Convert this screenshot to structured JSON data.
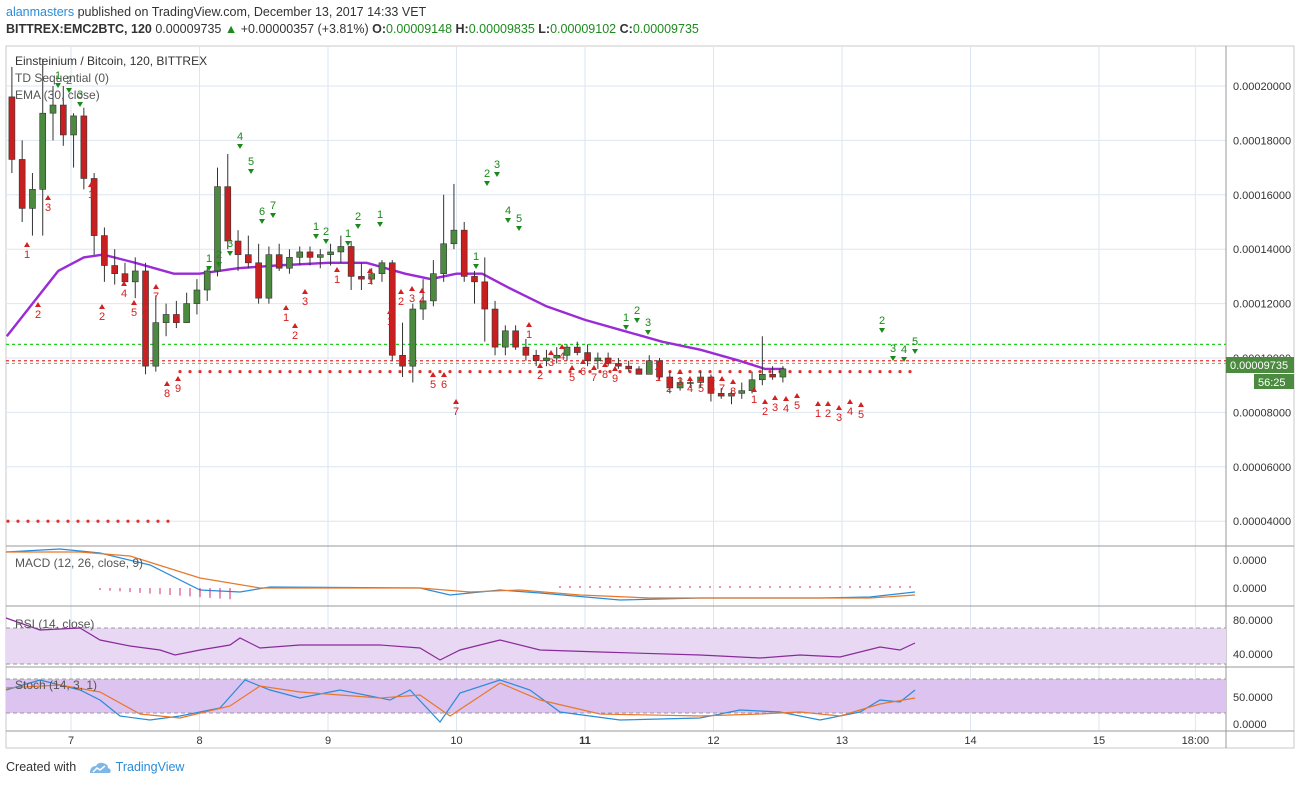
{
  "header": {
    "user": "alanmasters",
    "published_text": " published on TradingView.com, December 13, 2017 14:33 VET",
    "symbol": "BITTREX:EMC2BTC, 120",
    "last": "0.00009735",
    "change": "+0.00000357 (+3.81%)",
    "o_label": "O:",
    "o_value": "0.00009148",
    "h_label": "H:",
    "h_value": "0.00009835",
    "l_label": "L:",
    "l_value": "0.00009102",
    "c_label": "C:",
    "c_value": "0.00009735"
  },
  "legend": {
    "title": "Einsteinium / Bitcoin, 120, BITTREX",
    "td": "TD Sequential (0)",
    "ema": "EMA (30, close)"
  },
  "price_badges": {
    "price": "0.00009735",
    "countdown": "56:25"
  },
  "panes": {
    "macd": {
      "label": "MACD (12, 26, close, 9)",
      "ticks": [
        "0.0000",
        "0.0000"
      ]
    },
    "rsi": {
      "label": "RSI (14, close)",
      "ticks": [
        "80.0000",
        "40.0000"
      ]
    },
    "stoch": {
      "label": "Stoch (14, 3, 1)",
      "ticks": [
        "50.0000",
        "0.0000"
      ]
    }
  },
  "footer": {
    "created_with": "Created with",
    "brand": "TradingView"
  },
  "colors": {
    "up": "#4b8a3f",
    "down": "#c82020",
    "ema": "#9a2bd6",
    "grid": "#dbe6f2",
    "rsi_fill": "#e8d8f3",
    "stoch_fill": "#dcc3f0",
    "accent": "#2a8cd8"
  },
  "chart_data": {
    "type": "candlestick",
    "title": "Einsteinium / Bitcoin, 120, BITTREX",
    "x_ticks": [
      "7",
      "8",
      "9",
      "10",
      "11",
      "12",
      "13",
      "14",
      "15",
      "18:00"
    ],
    "y_ticks": [
      "0.00020000",
      "0.00018000",
      "0.00016000",
      "0.00014000",
      "0.00012000",
      "0.00010000",
      "0.00008000",
      "0.00006000",
      "0.00004000"
    ],
    "ylim": [
      3.2e-05,
      0.000215
    ],
    "xlim": [
      6.5,
      15.75
    ],
    "last_price": 9.735e-05,
    "candles": [
      [
        6.54,
        0.000196,
        0.000207,
        0.000168,
        0.000173
      ],
      [
        6.62,
        0.000173,
        0.00018,
        0.00015,
        0.000155
      ],
      [
        6.7,
        0.000155,
        0.000168,
        0.000145,
        0.000162
      ],
      [
        6.78,
        0.000162,
        0.00021,
        0.000145,
        0.00019
      ],
      [
        6.86,
        0.00019,
        0.0002,
        0.00018,
        0.000193
      ],
      [
        6.94,
        0.000193,
        0.0002,
        0.000178,
        0.000182
      ],
      [
        7.02,
        0.000182,
        0.00019,
        0.00017,
        0.000189
      ],
      [
        7.1,
        0.000189,
        0.000192,
        0.000162,
        0.000166
      ],
      [
        7.18,
        0.000166,
        0.000168,
        0.000138,
        0.000145
      ],
      [
        7.26,
        0.000145,
        0.000148,
        0.000128,
        0.000134
      ],
      [
        7.34,
        0.000134,
        0.00014,
        0.000127,
        0.000131
      ],
      [
        7.42,
        0.000131,
        0.000135,
        0.000128,
        0.000128
      ],
      [
        7.5,
        0.000128,
        0.000137,
        0.000122,
        0.000132
      ],
      [
        7.58,
        0.000132,
        0.000135,
        9.4e-05,
        9.7e-05
      ],
      [
        7.66,
        9.7e-05,
        0.000123,
        9.5e-05,
        0.000113
      ],
      [
        7.74,
        0.000113,
        0.00012,
        0.000108,
        0.000116
      ],
      [
        7.82,
        0.000116,
        0.000121,
        0.000111,
        0.000113
      ],
      [
        7.9,
        0.000113,
        0.000124,
        0.000113,
        0.00012
      ],
      [
        7.98,
        0.00012,
        0.000129,
        0.000116,
        0.000125
      ],
      [
        8.06,
        0.000125,
        0.000133,
        0.000121,
        0.000132
      ],
      [
        8.14,
        0.000132,
        0.00017,
        0.00013,
        0.000163
      ],
      [
        8.22,
        0.000163,
        0.000175,
        0.00014,
        0.000143
      ],
      [
        8.3,
        0.000143,
        0.000147,
        0.000132,
        0.000138
      ],
      [
        8.38,
        0.000138,
        0.000145,
        0.000133,
        0.000135
      ],
      [
        8.46,
        0.000135,
        0.000142,
        0.00012,
        0.000122
      ],
      [
        8.54,
        0.000122,
        0.000141,
        0.00012,
        0.000138
      ],
      [
        8.62,
        0.000138,
        0.000142,
        0.000132,
        0.000133
      ],
      [
        8.7,
        0.000133,
        0.00014,
        0.000131,
        0.000137
      ],
      [
        8.78,
        0.000137,
        0.000141,
        0.000134,
        0.000139
      ],
      [
        8.86,
        0.000139,
        0.000141,
        0.000134,
        0.000137
      ],
      [
        8.94,
        0.000137,
        0.00014,
        0.000133,
        0.000138
      ],
      [
        9.02,
        0.000138,
        0.000142,
        0.000134,
        0.000139
      ],
      [
        9.1,
        0.000139,
        0.000145,
        0.000135,
        0.000141
      ],
      [
        9.18,
        0.000141,
        0.000143,
        0.000125,
        0.00013
      ],
      [
        9.26,
        0.00013,
        0.000135,
        0.000125,
        0.000129
      ],
      [
        9.34,
        0.000129,
        0.000133,
        0.000127,
        0.000131
      ],
      [
        9.42,
        0.000131,
        0.000136,
        0.000128,
        0.000135
      ],
      [
        9.5,
        0.000135,
        0.000136,
        9.9e-05,
        0.000101
      ],
      [
        9.58,
        0.000101,
        0.000113,
        9.3e-05,
        9.7e-05
      ],
      [
        9.66,
        9.7e-05,
        0.00012,
        9.1e-05,
        0.000118
      ],
      [
        9.74,
        0.000118,
        0.000129,
        0.000114,
        0.000121
      ],
      [
        9.82,
        0.000121,
        0.000136,
        0.000119,
        0.000131
      ],
      [
        9.9,
        0.000131,
        0.00016,
        0.000128,
        0.000142
      ],
      [
        9.98,
        0.000142,
        0.000164,
        0.00014,
        0.000147
      ],
      [
        10.06,
        0.000147,
        0.00015,
        0.000128,
        0.00013
      ],
      [
        10.14,
        0.00013,
        0.000132,
        0.00012,
        0.000128
      ],
      [
        10.22,
        0.000128,
        0.000137,
        0.000106,
        0.000118
      ],
      [
        10.3,
        0.000118,
        0.000121,
        0.000101,
        0.000104
      ],
      [
        10.38,
        0.000104,
        0.000112,
        0.000101,
        0.00011
      ],
      [
        10.46,
        0.00011,
        0.000112,
        0.000103,
        0.000104
      ],
      [
        10.54,
        0.000104,
        0.000107,
        9.9e-05,
        0.000101
      ],
      [
        10.62,
        0.000101,
        0.000103,
        9.7e-05,
        9.9e-05
      ],
      [
        10.7,
        9.9e-05,
        0.000103,
        9.7e-05,
        0.0001
      ],
      [
        10.78,
        0.0001,
        0.000104,
        9.8e-05,
        0.000101
      ],
      [
        10.86,
        0.000101,
        0.000105,
        9.9e-05,
        0.000104
      ],
      [
        10.94,
        0.000104,
        0.000106,
        0.000101,
        0.000102
      ],
      [
        11.02,
        0.000102,
        0.000105,
        9.7e-05,
        9.9e-05
      ],
      [
        11.1,
        9.9e-05,
        0.000102,
        9.6e-05,
        0.0001
      ],
      [
        11.18,
        0.0001,
        0.000102,
        9.7e-05,
        9.8e-05
      ],
      [
        11.26,
        9.8e-05,
        0.0001,
        9.6e-05,
        9.7e-05
      ],
      [
        11.34,
        9.7e-05,
        9.9e-05,
        9.5e-05,
        9.6e-05
      ],
      [
        11.42,
        9.6e-05,
        9.7e-05,
        9.4e-05,
        9.4e-05
      ],
      [
        11.5,
        9.4e-05,
        0.000101,
        9.4e-05,
        9.9e-05
      ],
      [
        11.58,
        9.9e-05,
        0.0001,
        9.2e-05,
        9.3e-05
      ],
      [
        11.66,
        9.3e-05,
        9.5e-05,
        8.7e-05,
        8.9e-05
      ],
      [
        11.74,
        8.9e-05,
        9.3e-05,
        8.8e-05,
        9.1e-05
      ],
      [
        11.82,
        9.1e-05,
        9.2e-05,
        8.9e-05,
        9.1e-05
      ],
      [
        11.9,
        9.1e-05,
        9.5e-05,
        8.9e-05,
        9.3e-05
      ],
      [
        11.98,
        9.3e-05,
        9.4e-05,
        8.4e-05,
        8.7e-05
      ],
      [
        12.06,
        8.7e-05,
        8.9e-05,
        8.5e-05,
        8.6e-05
      ],
      [
        12.14,
        8.6e-05,
        8.8e-05,
        8.3e-05,
        8.7e-05
      ],
      [
        12.22,
        8.7e-05,
        9.1e-05,
        8.5e-05,
        8.8e-05
      ],
      [
        12.3,
        8.8e-05,
        9.5e-05,
        8.7e-05,
        9.2e-05
      ],
      [
        12.38,
        9.2e-05,
        0.000108,
        9e-05,
        9.4e-05
      ],
      [
        12.46,
        9.4e-05,
        9.7e-05,
        9.2e-05,
        9.3e-05
      ],
      [
        12.54,
        9.3e-05,
        9.7e-05,
        9.1e-05,
        9.6e-05
      ]
    ],
    "ema": [
      [
        6.5,
        0.000108
      ],
      [
        6.7,
        0.00012
      ],
      [
        6.9,
        0.000132
      ],
      [
        7.1,
        0.000137
      ],
      [
        7.25,
        0.000138
      ],
      [
        7.5,
        0.000135
      ],
      [
        7.8,
        0.000131
      ],
      [
        8.0,
        0.000131
      ],
      [
        8.3,
        0.000133
      ],
      [
        8.6,
        0.000134
      ],
      [
        9.0,
        0.000135
      ],
      [
        9.3,
        0.000135
      ],
      [
        9.6,
        0.000131
      ],
      [
        9.8,
        0.000129
      ],
      [
        10.0,
        0.000131
      ],
      [
        10.2,
        0.000131
      ],
      [
        10.4,
        0.000126
      ],
      [
        10.7,
        0.000119
      ],
      [
        11.0,
        0.000114
      ],
      [
        11.3,
        0.00011
      ],
      [
        11.6,
        0.000106
      ],
      [
        11.9,
        0.000103
      ],
      [
        12.2,
        9.9e-05
      ],
      [
        12.4,
        9.6e-05
      ],
      [
        12.55,
        9.6e-05
      ]
    ],
    "support_levels": [
      0.000105,
      9.9e-05,
      9.8e-05
    ],
    "td_dots_level": 9.5e-05,
    "td_dots_low_level": 4e-05
  }
}
